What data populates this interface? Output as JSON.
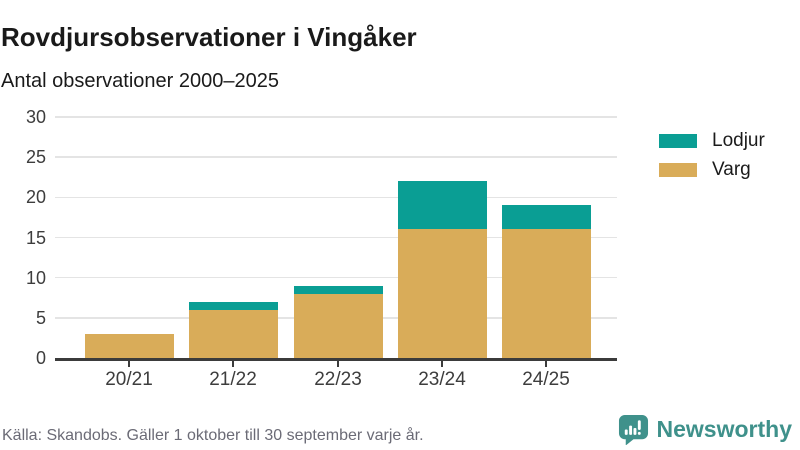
{
  "header": {
    "title": "Rovdjursobservationer i Vingåker",
    "subtitle": "Antal observationer 2000–2025"
  },
  "chart_data": {
    "type": "bar",
    "stacked": true,
    "title": "Rovdjursobservationer i Vingåker",
    "subtitle": "Antal observationer 2000–2025",
    "categories": [
      "20/21",
      "21/22",
      "22/23",
      "23/24",
      "24/25"
    ],
    "series": [
      {
        "name": "Lodjur",
        "color": "#0a9e94",
        "values": [
          0,
          1,
          1,
          6,
          3
        ]
      },
      {
        "name": "Varg",
        "color": "#d9ac59",
        "values": [
          3,
          6,
          8,
          16,
          16
        ]
      }
    ],
    "totals": [
      3,
      7,
      9,
      22,
      19
    ],
    "ylim": [
      0,
      30
    ],
    "ytick_step": 5,
    "yticks": [
      0,
      5,
      10,
      15,
      20,
      25,
      30
    ],
    "xlabel": "",
    "ylabel": "",
    "grid": true,
    "legend_position": "right"
  },
  "footer": {
    "source": "Källa: Skandobs. Gäller 1 oktober till 30 september varje år."
  },
  "brand": {
    "name": "Newsworthy",
    "color": "#3f918b"
  }
}
